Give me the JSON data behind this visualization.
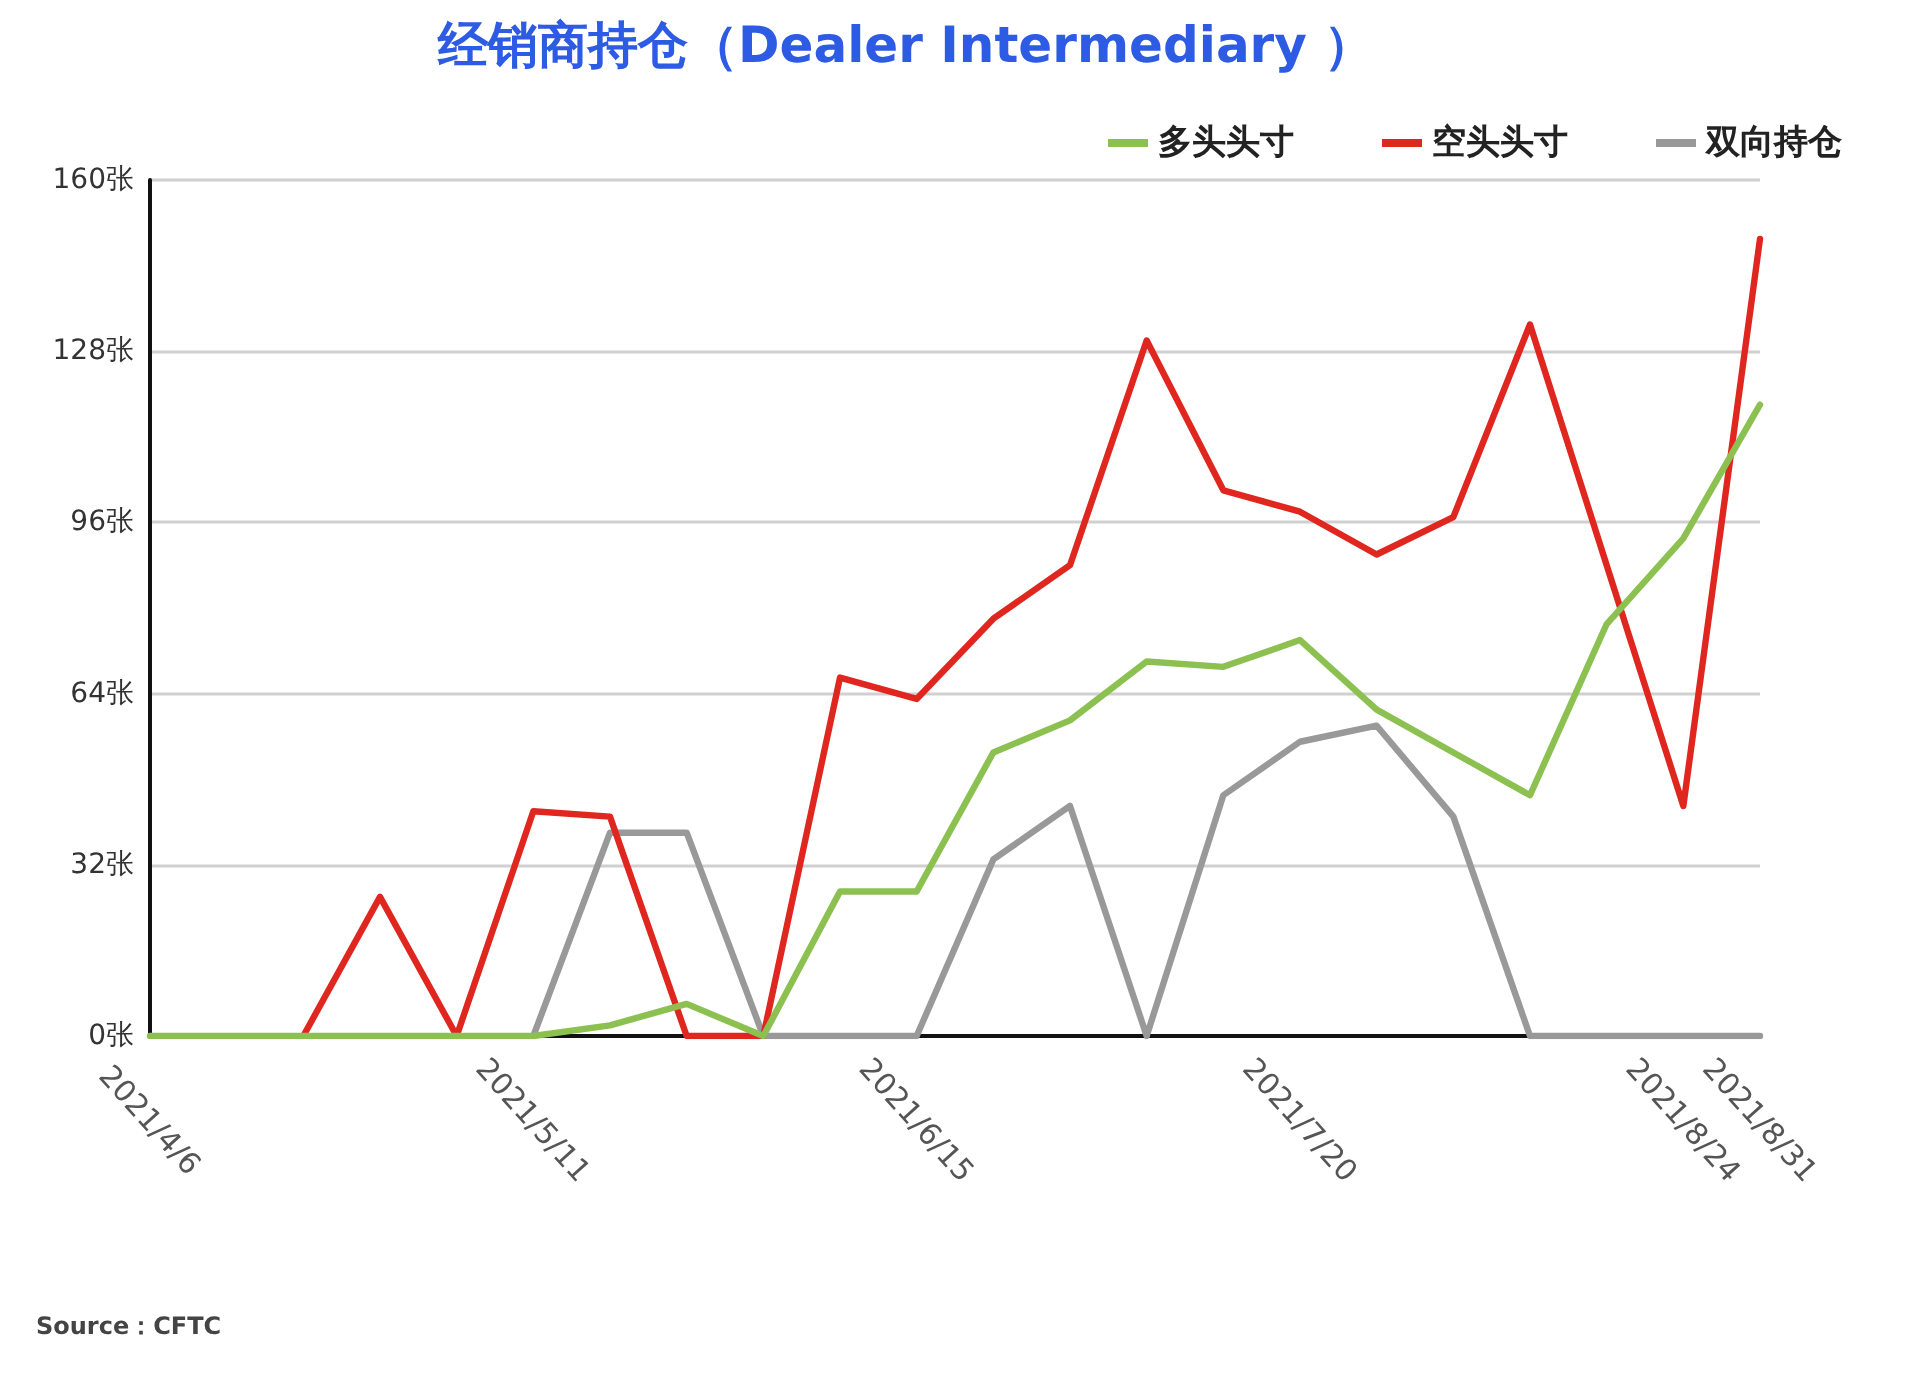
{
  "chart_data": {
    "type": "line",
    "title": "经销商持仓（Dealer Intermediary ）",
    "categories": [
      "2021/4/6",
      null,
      null,
      null,
      null,
      "2021/5/11",
      null,
      null,
      null,
      null,
      "2021/6/15",
      null,
      null,
      null,
      null,
      "2021/7/20",
      null,
      null,
      null,
      null,
      "2021/8/24",
      "2021/8/31"
    ],
    "series": [
      {
        "name": "多头头寸",
        "color": "#8cc152",
        "values": [
          0,
          0,
          0,
          0,
          0,
          0,
          2,
          6,
          0,
          27,
          27,
          53,
          59,
          70,
          69,
          74,
          61,
          53,
          45,
          77,
          93,
          118
        ]
      },
      {
        "name": "空头头寸",
        "color": "#e0271f",
        "values": [
          null,
          null,
          0,
          26,
          0,
          42,
          41,
          0,
          0,
          67,
          63,
          78,
          88,
          130,
          102,
          98,
          90,
          97,
          133,
          88,
          43,
          149
        ]
      },
      {
        "name": "双向持仓",
        "color": "#999999",
        "values": [
          null,
          null,
          null,
          null,
          null,
          0,
          38,
          38,
          0,
          0,
          0,
          33,
          43,
          0,
          45,
          55,
          58,
          41,
          0,
          0,
          0,
          0
        ]
      }
    ],
    "ylim": [
      0,
      160
    ],
    "yticks": [
      {
        "value": 0,
        "label": "0张"
      },
      {
        "value": 32,
        "label": "32张"
      },
      {
        "value": 64,
        "label": "64张"
      },
      {
        "value": 96,
        "label": "96张"
      },
      {
        "value": 128,
        "label": "128张"
      },
      {
        "value": 160,
        "label": "160张"
      }
    ],
    "grid": "y",
    "legend": "top right",
    "marker": "none",
    "line_style": "solid",
    "annotations": [
      "Source：CFTC"
    ]
  }
}
